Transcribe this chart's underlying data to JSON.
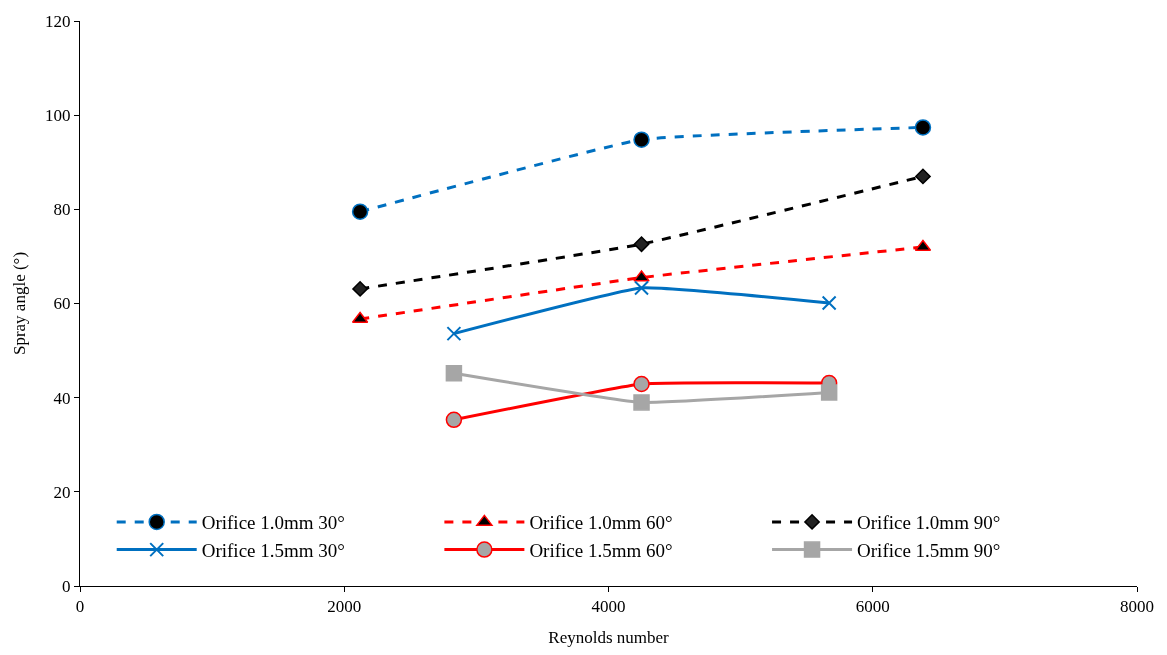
{
  "chart_data": {
    "type": "line",
    "xlabel": "Reynolds number",
    "ylabel": "Spray angle (°)",
    "xlim": [
      0,
      8000
    ],
    "xticks": [
      0,
      2000,
      4000,
      6000,
      8000
    ],
    "ylim": [
      0,
      120
    ],
    "yticks": [
      0,
      20,
      40,
      60,
      80,
      100,
      120
    ],
    "legend": "bottom",
    "series": [
      {
        "name": "Orifice 1.0mm 30°",
        "color": "#0070c0",
        "marker": "circle",
        "line_style": "dashed",
        "x": [
          2120,
          4250,
          6380
        ],
        "values": [
          79.5,
          94.8,
          97.4
        ]
      },
      {
        "name": "Orifice 1.0mm 60°",
        "color": "#ff0000",
        "marker": "triangle",
        "line_style": "dashed",
        "x": [
          2120,
          4250,
          6380
        ],
        "values": [
          56.7,
          65.5,
          72.0
        ]
      },
      {
        "name": "Orifice 1.0mm 90°",
        "color": "#000000",
        "marker": "diamond",
        "line_style": "dashed",
        "x": [
          2120,
          4250,
          6380
        ],
        "values": [
          63.1,
          72.6,
          87.0
        ]
      },
      {
        "name": "Orifice 1.5mm 30°",
        "color": "#0070c0",
        "marker": "cross",
        "line_style": "solid",
        "x": [
          2830,
          4250,
          5670
        ],
        "values": [
          53.6,
          63.3,
          60.1
        ]
      },
      {
        "name": "Orifice 1.5mm 60°",
        "color": "#ff0000",
        "marker": "circle",
        "line_style": "solid",
        "x": [
          2830,
          4250,
          5670
        ],
        "values": [
          35.3,
          42.9,
          43.1
        ]
      },
      {
        "name": "Orifice 1.5mm 90°",
        "color": "#a6a6a6",
        "marker": "square",
        "line_style": "solid",
        "x": [
          2830,
          4250,
          5670
        ],
        "values": [
          45.2,
          39.0,
          41.1
        ]
      }
    ]
  }
}
